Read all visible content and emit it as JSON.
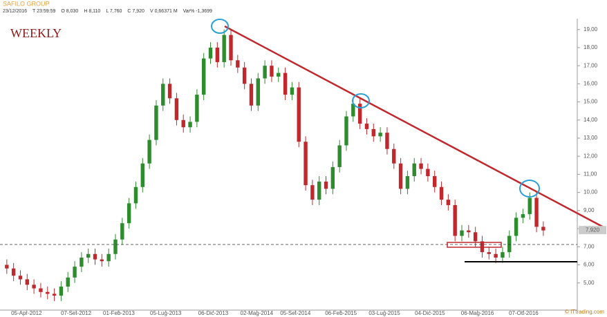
{
  "header": {
    "title": "SAFILO GROUP",
    "info": [
      "23/12/2016",
      "T 23:59:59",
      "O 8,030",
      "H 8,110",
      "L 7,760",
      "C 7,920",
      "V 0,66371 M",
      "Var% -1,3699"
    ]
  },
  "chart_data": {
    "type": "candlestick",
    "title": "WEEKLY",
    "watermark": "© ITtrading.com",
    "up_color": "#2e8b2e",
    "down_color": "#c0282d",
    "open": [
      6.0,
      5.8,
      5.4,
      5.2,
      4.9,
      4.7,
      4.5,
      4.4,
      4.3,
      4.8,
      5.3,
      5.9,
      6.4,
      6.6,
      6.3,
      6.2,
      6.6,
      7.4,
      8.3,
      9.4,
      10.3,
      11.6,
      12.9,
      14.8,
      16.0,
      15.2,
      14.0,
      13.6,
      13.9,
      15.4,
      17.4,
      18.0,
      17.2,
      18.7,
      17.3,
      16.9,
      16.0,
      14.8,
      16.3,
      17.0,
      16.4,
      16.6,
      15.4,
      15.8,
      12.8,
      10.4,
      9.6,
      10.6,
      10.2,
      11.4,
      12.6,
      14.2,
      14.9,
      13.8,
      13.5,
      13.1,
      13.3,
      12.4,
      11.6,
      10.2,
      10.9,
      11.6,
      11.3,
      10.9,
      10.3,
      9.6,
      9.3,
      7.6,
      7.9,
      7.8,
      7.3,
      6.7,
      6.6,
      6.4,
      6.7,
      7.6,
      8.6,
      8.8,
      9.7,
      8.1
    ],
    "high": [
      6.3,
      6.1,
      5.7,
      5.5,
      5.2,
      5.0,
      4.8,
      4.7,
      5.1,
      5.6,
      6.2,
      6.7,
      6.9,
      6.9,
      6.6,
      6.9,
      7.7,
      8.6,
      9.7,
      10.6,
      11.9,
      13.2,
      15.1,
      16.3,
      16.3,
      15.5,
      14.3,
      14.2,
      15.7,
      17.7,
      18.3,
      18.3,
      19.0,
      19.0,
      17.6,
      17.2,
      16.3,
      16.6,
      17.3,
      17.3,
      16.9,
      16.9,
      16.1,
      16.1,
      13.1,
      10.7,
      10.9,
      10.9,
      11.7,
      12.9,
      14.5,
      15.2,
      15.2,
      14.1,
      13.8,
      13.6,
      13.6,
      12.7,
      11.9,
      11.2,
      11.9,
      11.9,
      11.6,
      11.2,
      10.6,
      9.9,
      9.6,
      8.2,
      8.2,
      8.1,
      7.6,
      7.0,
      6.9,
      7.0,
      7.9,
      8.9,
      9.1,
      10.0,
      10.0,
      8.4
    ],
    "low": [
      5.5,
      5.1,
      4.9,
      4.6,
      4.4,
      4.2,
      4.1,
      4.0,
      4.0,
      4.5,
      5.0,
      5.6,
      6.1,
      6.0,
      5.9,
      5.9,
      6.3,
      7.1,
      8.0,
      9.1,
      10.0,
      11.3,
      12.6,
      14.5,
      14.9,
      13.7,
      13.3,
      13.3,
      13.6,
      15.1,
      17.1,
      16.9,
      16.9,
      17.0,
      16.6,
      15.7,
      14.5,
      14.5,
      16.0,
      16.1,
      16.1,
      15.1,
      15.1,
      12.5,
      10.1,
      9.3,
      9.3,
      9.9,
      9.9,
      11.1,
      12.3,
      13.9,
      13.5,
      13.2,
      12.8,
      12.8,
      12.1,
      11.3,
      9.9,
      9.9,
      10.6,
      11.0,
      10.6,
      10.0,
      9.3,
      9.0,
      7.3,
      7.3,
      7.5,
      7.0,
      6.4,
      6.3,
      6.1,
      6.1,
      6.4,
      7.3,
      8.3,
      8.5,
      7.8,
      7.6
    ],
    "close": [
      5.8,
      5.4,
      5.2,
      4.9,
      4.7,
      4.5,
      4.4,
      4.3,
      4.8,
      5.3,
      5.9,
      6.4,
      6.6,
      6.3,
      6.2,
      6.6,
      7.4,
      8.3,
      9.4,
      10.3,
      11.6,
      12.9,
      14.8,
      16.0,
      15.2,
      14.0,
      13.6,
      13.9,
      15.4,
      17.4,
      18.0,
      17.2,
      18.7,
      17.3,
      16.9,
      16.0,
      14.8,
      16.3,
      17.0,
      16.4,
      16.6,
      15.4,
      15.8,
      12.8,
      10.4,
      9.6,
      10.6,
      10.2,
      11.4,
      12.6,
      14.2,
      14.9,
      13.8,
      13.5,
      13.1,
      13.3,
      12.4,
      11.6,
      10.2,
      10.9,
      11.6,
      11.3,
      10.9,
      10.3,
      9.6,
      9.3,
      7.6,
      7.9,
      7.8,
      7.3,
      6.7,
      6.6,
      6.4,
      6.7,
      7.6,
      8.6,
      8.8,
      9.7,
      8.1,
      7.9
    ],
    "xlim": [
      -1,
      84
    ],
    "ylim": [
      3.5,
      19.6
    ],
    "xticks": [
      {
        "value": 2.9,
        "label": "05-Apr-2012"
      },
      {
        "value": 10.2,
        "label": "07-Set-2012"
      },
      {
        "value": 16.5,
        "label": "01-Feb-2013"
      },
      {
        "value": 23.4,
        "label": "05-Lug-2013"
      },
      {
        "value": 30.4,
        "label": "06-Dic-2013"
      },
      {
        "value": 36.8,
        "label": "02-Mag-2014"
      },
      {
        "value": 42.5,
        "label": "05-Set-2014"
      },
      {
        "value": 49.2,
        "label": "06-Feb-2015"
      },
      {
        "value": 55.6,
        "label": "03-Lug-2015"
      },
      {
        "value": 62.3,
        "label": "04-Dic-2015"
      },
      {
        "value": 69.3,
        "label": "06-Mag-2016"
      },
      {
        "value": 76.1,
        "label": "07-Ott-2016"
      }
    ],
    "yticks": [
      {
        "value": 5,
        "label": "5,00"
      },
      {
        "value": 6,
        "label": "6,00"
      },
      {
        "value": 7,
        "label": "7,00"
      },
      {
        "value": 8,
        "label": "8,00"
      },
      {
        "value": 9,
        "label": "9,00"
      },
      {
        "value": 10,
        "label": "10,00"
      },
      {
        "value": 11,
        "label": "11,00"
      },
      {
        "value": 12,
        "label": "12,00"
      },
      {
        "value": 13,
        "label": "13,00"
      },
      {
        "value": 14,
        "label": "14,00"
      },
      {
        "value": 15,
        "label": "15,00"
      },
      {
        "value": 16,
        "label": "16,00"
      },
      {
        "value": 17,
        "label": "17,00"
      },
      {
        "value": 18,
        "label": "18,00"
      },
      {
        "value": 19,
        "label": "19,00"
      }
    ],
    "last_price": {
      "value": 7.92,
      "label": "7,920"
    }
  }
}
